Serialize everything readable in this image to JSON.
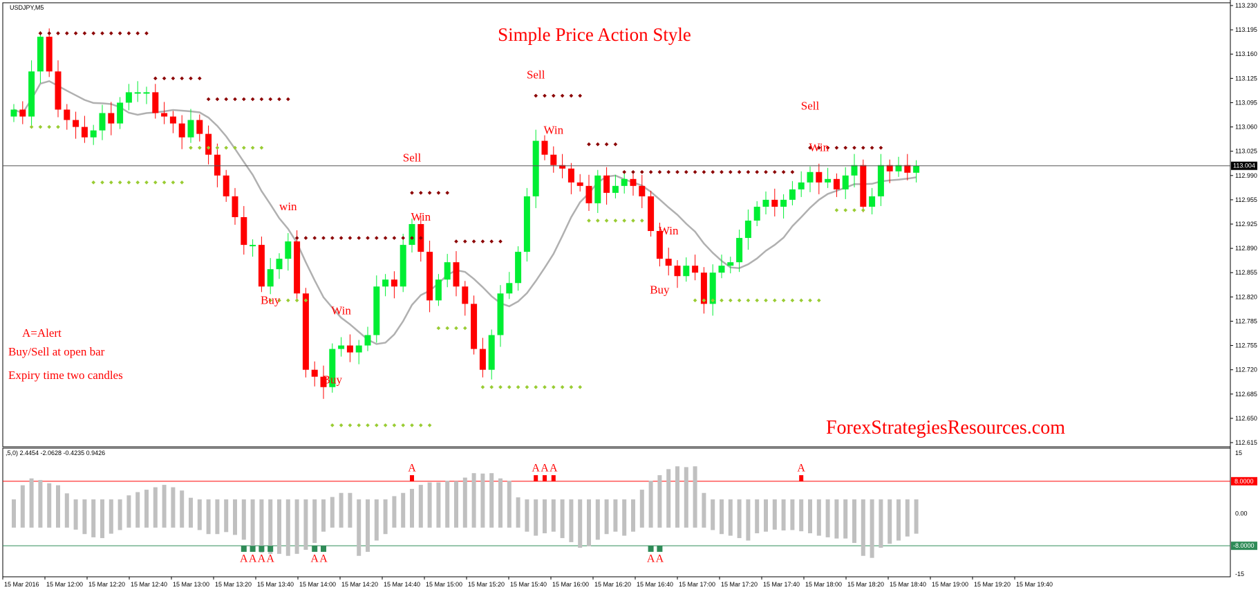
{
  "window": {
    "symbol": "USDJPY,M5"
  },
  "title": "Simple Price Action Style",
  "watermark": "ForexStrategiesResources.com",
  "legend_notes": [
    "A=Alert",
    "Buy/Sell at open bar",
    "Expiry time two candles"
  ],
  "indicator_label": ",5,0) 2.4454 -2.0628 -0.4235 0.9426",
  "current_price": "113.004",
  "price_axis_ticks": [
    "113.230",
    "113.195",
    "113.160",
    "113.125",
    "113.095",
    "113.060",
    "113.025",
    "112.990",
    "112.955",
    "112.925",
    "112.890",
    "112.855",
    "112.820",
    "112.785",
    "112.755",
    "112.720",
    "112.685",
    "112.650",
    "112.615"
  ],
  "indicator_axis": {
    "top": "15",
    "upper_level": "8.0000",
    "zero": "0.00",
    "lower_level": "-8.0000",
    "bottom": "-15"
  },
  "time_labels": [
    "15 Mar 2016",
    "15 Mar 12:00",
    "15 Mar 12:20",
    "15 Mar 12:40",
    "15 Mar 13:00",
    "15 Mar 13:20",
    "15 Mar 13:40",
    "15 Mar 14:00",
    "15 Mar 14:20",
    "15 Mar 14:40",
    "15 Mar 15:00",
    "15 Mar 15:20",
    "15 Mar 15:40",
    "15 Mar 16:00",
    "15 Mar 16:20",
    "15 Mar 16:40",
    "15 Mar 17:00",
    "15 Mar 17:20",
    "15 Mar 17:40",
    "15 Mar 18:00",
    "15 Mar 18:20",
    "15 Mar 18:40",
    "15 Mar 19:00",
    "15 Mar 19:20",
    "15 Mar 19:40"
  ],
  "annotations": [
    {
      "text": "Sell",
      "bar": 59
    },
    {
      "text": "Win",
      "bar": 61
    },
    {
      "text": "Sell",
      "bar": 45
    },
    {
      "text": "Win",
      "bar": 46
    },
    {
      "text": "Sell",
      "bar": 90
    },
    {
      "text": "Win",
      "bar": 91
    },
    {
      "text": "Win",
      "bar": 74
    },
    {
      "text": "Buy",
      "bar": 73
    },
    {
      "text": "win",
      "bar": 31
    },
    {
      "text": "Buy",
      "bar": 29
    },
    {
      "text": "Win",
      "bar": 37
    },
    {
      "text": "Buy",
      "bar": 36
    }
  ],
  "colors": {
    "bull": "#00ee33",
    "bear": "#ff0000",
    "ma": "#b0b0b0",
    "top_dots": "#8b0000",
    "bottom_dots": "#99cc33",
    "osc": "#c0c0c0",
    "alert_up": "#ff0000",
    "alert_down": "#2e8b57",
    "upper_line": "#ff0000",
    "lower_line": "#2e8b57"
  },
  "chart_data": {
    "type": "candlestick",
    "title": "Simple Price Action Style",
    "x": [
      "15 Mar 2016",
      "15 Mar 12:00",
      "15 Mar 12:20",
      "15 Mar 12:40",
      "15 Mar 13:00",
      "15 Mar 13:20",
      "15 Mar 13:40",
      "15 Mar 14:00",
      "15 Mar 14:20",
      "15 Mar 14:40",
      "15 Mar 15:00",
      "15 Mar 15:20",
      "15 Mar 15:40",
      "15 Mar 16:00",
      "15 Mar 16:20",
      "15 Mar 16:40",
      "15 Mar 17:00",
      "15 Mar 17:20",
      "15 Mar 17:40",
      "15 Mar 18:00",
      "15 Mar 18:20",
      "15 Mar 18:40",
      "15 Mar 19:00",
      "15 Mar 19:20",
      "15 Mar 19:40"
    ],
    "ylim": [
      112.605,
      113.235
    ],
    "closes": [
      113.085,
      113.075,
      113.14,
      113.19,
      113.14,
      113.085,
      113.07,
      113.06,
      113.045,
      113.055,
      113.08,
      113.065,
      113.095,
      113.11,
      113.11,
      113.11,
      113.08,
      113.075,
      113.065,
      113.045,
      113.07,
      113.05,
      113.02,
      112.99,
      112.96,
      112.93,
      112.89,
      112.89,
      112.83,
      112.855,
      112.87,
      112.895,
      112.82,
      112.71,
      112.7,
      112.685,
      112.74,
      112.745,
      112.735,
      112.745,
      112.76,
      112.83,
      112.84,
      112.83,
      112.89,
      112.92,
      112.88,
      112.81,
      112.84,
      112.865,
      112.83,
      112.805,
      112.74,
      112.71,
      112.76,
      112.82,
      112.835,
      112.88,
      112.96,
      113.04,
      113.02,
      113.005,
      113.0,
      112.98,
      112.975,
      112.95,
      112.99,
      112.965,
      112.975,
      112.985,
      112.975,
      112.96,
      112.91,
      112.87,
      112.86,
      112.845,
      112.86,
      112.85,
      112.805,
      112.85,
      112.86,
      112.865,
      112.9,
      112.925,
      112.945,
      112.955,
      112.945,
      112.955,
      112.97,
      112.98,
      112.995,
      112.98,
      112.985,
      112.97,
      112.99,
      113.005,
      112.945,
      112.96,
      113.005,
      112.996,
      113.005,
      112.994,
      113.004
    ],
    "osc_values": [
      0.0,
      3.5,
      5.2,
      4.8,
      4.0,
      3.5,
      1.5,
      -0.5,
      -1.6,
      -2.4,
      -2.6,
      -1.5,
      -0.6,
      1.0,
      1.8,
      2.4,
      3.0,
      3.6,
      3.0,
      2.2,
      0.4,
      -0.6,
      -1.6,
      -1.6,
      -1.1,
      -1.8,
      -3.0,
      -5.0,
      -6.2,
      -6.5,
      -6.5,
      -7.0,
      -6.5,
      -5.5,
      -3.8,
      -1.0,
      0.6,
      1.6,
      1.6,
      -7.0,
      -6.0,
      -3.2,
      -1.6,
      0.8,
      1.6,
      2.6,
      3.6,
      4.2,
      4.2,
      4.6,
      4.5,
      5.4,
      6.5,
      6.4,
      6.5,
      5.2,
      4.6,
      0.5,
      -1.0,
      -2.0,
      -1.4,
      -1.0,
      -2.6,
      -3.6,
      -5.0,
      -4.6,
      -3.0,
      -1.6,
      -1.0,
      -2.0,
      -1.0,
      2.4,
      4.6,
      6.0,
      7.5,
      8.2,
      8.0,
      8.2,
      1.6,
      -0.6,
      -1.6,
      -2.0,
      -2.6,
      -3.2,
      -1.4,
      -1.0,
      -0.5,
      -0.7,
      -0.6,
      -0.9,
      -1.4,
      -2.0,
      -2.4,
      -2.7,
      -2.7,
      -3.8,
      -7.0,
      -7.5,
      -5.0,
      -4.0,
      -3.2,
      -2.2,
      -1.5
    ],
    "alerts_up": [
      45,
      59,
      60,
      61,
      89
    ],
    "alerts_down": [
      26,
      27,
      28,
      29,
      34,
      35,
      72,
      73
    ]
  }
}
